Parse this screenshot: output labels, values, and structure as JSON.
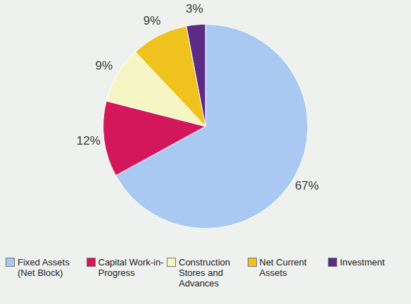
{
  "chart_data": {
    "type": "pie",
    "categories": [
      "Fixed Assets (Net Block)",
      "Capital Work-in-Progress",
      "Construction Stores and Advances",
      "Net Current Assets",
      "Investment"
    ],
    "values": [
      67,
      12,
      9,
      9,
      3
    ],
    "value_labels": [
      "67%",
      "12%",
      "9%",
      "9%",
      "3%"
    ],
    "colors": [
      "#a9c9f2",
      "#d3175a",
      "#f6f5c4",
      "#f0c21e",
      "#5b2b85"
    ],
    "legend": "bottom",
    "data_labels": true
  }
}
